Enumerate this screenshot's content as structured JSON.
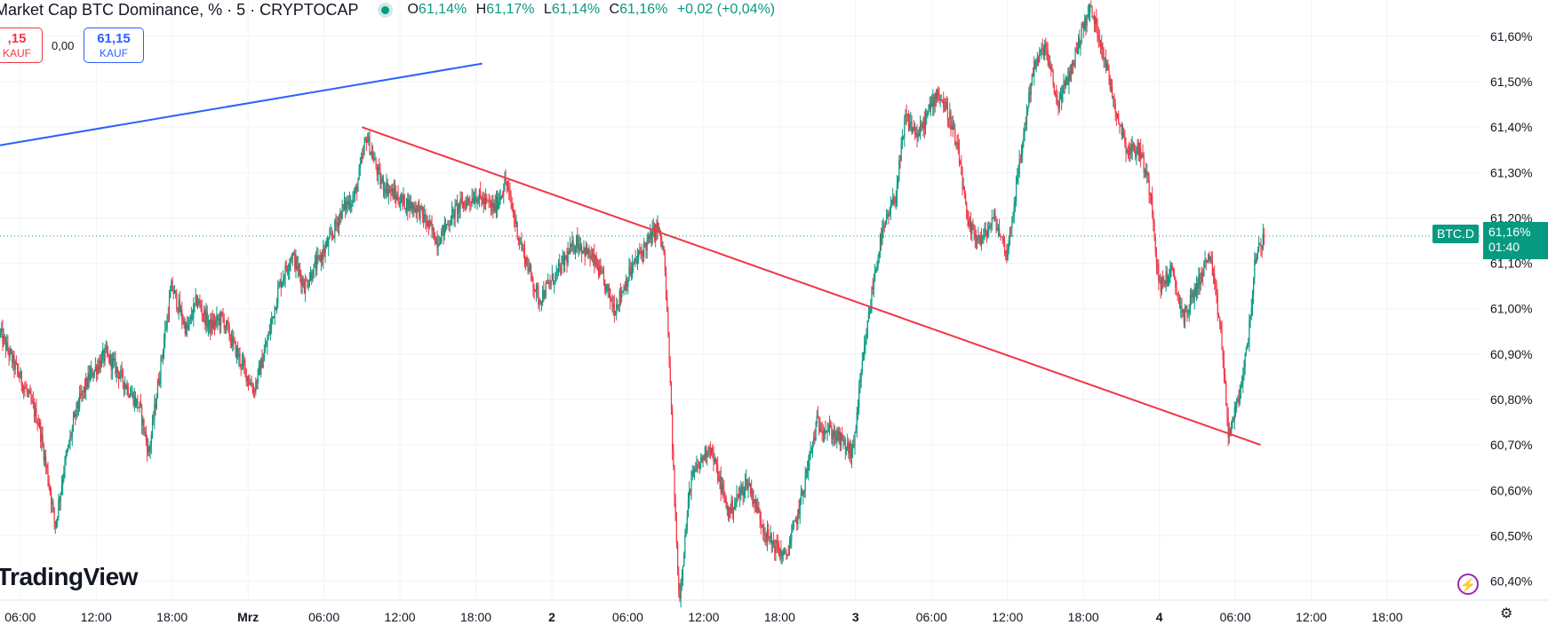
{
  "header": {
    "title": "Market Cap BTC Dominance, % · 5 · CRYPTOCAP",
    "open_key": "O",
    "open": "61,14%",
    "high_key": "H",
    "high": "61,17%",
    "low_key": "L",
    "low": "61,14%",
    "close_key": "C",
    "close": "61,16%",
    "change": "+0,02 (+0,04%)"
  },
  "trade": {
    "sell_price": ",15",
    "sell_label": "KAUF",
    "spread": "0,00",
    "buy_price": "61,15",
    "buy_label": "KAUF"
  },
  "branding": {
    "logo": "TradingView"
  },
  "price_tag": {
    "symbol": "BTC.D",
    "value": "61,16%",
    "countdown": "01:40"
  },
  "colors": {
    "up": "#089981",
    "down": "#f23645",
    "trendline_red": "#f23645",
    "trendline_blue": "#2962ff"
  },
  "icons": [
    "lightning-icon",
    "settings-icon"
  ],
  "chart_data": {
    "type": "candlestick",
    "symbol": "BTC.D",
    "interval": "5",
    "ylim": [
      60.36,
      61.68
    ],
    "y_ticks": [
      60.4,
      60.5,
      60.6,
      60.7,
      60.8,
      60.9,
      61.0,
      61.1,
      61.2,
      61.3,
      61.4,
      61.5,
      61.6
    ],
    "y_tick_labels": [
      "60,40%",
      "60,50%",
      "60,60%",
      "60,70%",
      "60,80%",
      "60,90%",
      "61,00%",
      "61,10%",
      "61,20%",
      "61,30%",
      "61,40%",
      "61,50%",
      "61,60%"
    ],
    "x_ticks": [
      {
        "t": 6,
        "label": "06:00"
      },
      {
        "t": 12,
        "label": "12:00"
      },
      {
        "t": 18,
        "label": "18:00"
      },
      {
        "t": 24,
        "label": "Mrz"
      },
      {
        "t": 30,
        "label": "06:00"
      },
      {
        "t": 36,
        "label": "12:00"
      },
      {
        "t": 42,
        "label": "18:00"
      },
      {
        "t": 48,
        "label": "2"
      },
      {
        "t": 54,
        "label": "06:00"
      },
      {
        "t": 60,
        "label": "12:00"
      },
      {
        "t": 66,
        "label": "18:00"
      },
      {
        "t": 72,
        "label": "3"
      },
      {
        "t": 78,
        "label": "06:00"
      },
      {
        "t": 84,
        "label": "12:00"
      },
      {
        "t": 90,
        "label": "18:00"
      },
      {
        "t": 96,
        "label": "4"
      },
      {
        "t": 102,
        "label": "06:00"
      },
      {
        "t": 108,
        "label": "12:00"
      },
      {
        "t": 114,
        "label": "18:00"
      }
    ],
    "xlim": [
      4.4,
      121.3
    ],
    "grid": true,
    "last_price": 61.16,
    "price_path": [
      [
        4.4,
        60.95
      ],
      [
        5.5,
        60.88
      ],
      [
        6.5,
        60.82
      ],
      [
        7.5,
        60.75
      ],
      [
        8.4,
        60.6
      ],
      [
        8.8,
        60.52
      ],
      [
        9.5,
        60.65
      ],
      [
        10.5,
        60.78
      ],
      [
        11.5,
        60.85
      ],
      [
        12.8,
        60.9
      ],
      [
        13.8,
        60.86
      ],
      [
        15.5,
        60.78
      ],
      [
        16.2,
        60.68
      ],
      [
        17.0,
        60.85
      ],
      [
        18.0,
        61.05
      ],
      [
        19.2,
        60.95
      ],
      [
        20.0,
        61.02
      ],
      [
        21.0,
        60.96
      ],
      [
        22.0,
        60.98
      ],
      [
        23.2,
        60.9
      ],
      [
        24.5,
        60.82
      ],
      [
        25.5,
        60.92
      ],
      [
        26.5,
        61.05
      ],
      [
        27.5,
        61.12
      ],
      [
        28.5,
        61.05
      ],
      [
        29.5,
        61.1
      ],
      [
        30.5,
        61.15
      ],
      [
        31.5,
        61.22
      ],
      [
        32.5,
        61.25
      ],
      [
        33.4,
        61.38
      ],
      [
        34.5,
        61.28
      ],
      [
        36.0,
        61.24
      ],
      [
        37.5,
        61.22
      ],
      [
        39.0,
        61.15
      ],
      [
        40.5,
        61.22
      ],
      [
        42.0,
        61.25
      ],
      [
        43.5,
        61.22
      ],
      [
        44.4,
        61.28
      ],
      [
        45.5,
        61.15
      ],
      [
        47.0,
        61.02
      ],
      [
        48.5,
        61.08
      ],
      [
        50.0,
        61.15
      ],
      [
        51.5,
        61.1
      ],
      [
        53.0,
        61.0
      ],
      [
        54.2,
        61.08
      ],
      [
        55.0,
        61.12
      ],
      [
        56.4,
        61.18
      ],
      [
        56.9,
        61.12
      ],
      [
        57.3,
        60.9
      ],
      [
        57.7,
        60.6
      ],
      [
        58.1,
        60.36
      ],
      [
        59.0,
        60.62
      ],
      [
        60.5,
        60.7
      ],
      [
        62.0,
        60.55
      ],
      [
        63.5,
        60.62
      ],
      [
        65.0,
        60.5
      ],
      [
        66.5,
        60.45
      ],
      [
        67.5,
        60.55
      ],
      [
        69.0,
        60.75
      ],
      [
        70.5,
        60.72
      ],
      [
        71.8,
        60.68
      ],
      [
        72.6,
        60.88
      ],
      [
        73.4,
        61.05
      ],
      [
        74.0,
        61.15
      ],
      [
        75.2,
        61.25
      ],
      [
        76.0,
        61.42
      ],
      [
        77.0,
        61.38
      ],
      [
        78.5,
        61.48
      ],
      [
        79.5,
        61.42
      ],
      [
        80.3,
        61.32
      ],
      [
        80.9,
        61.18
      ],
      [
        82.0,
        61.15
      ],
      [
        83.0,
        61.2
      ],
      [
        84.0,
        61.12
      ],
      [
        85.0,
        61.32
      ],
      [
        86.0,
        61.52
      ],
      [
        87.0,
        61.58
      ],
      [
        88.0,
        61.45
      ],
      [
        89.0,
        61.52
      ],
      [
        90.0,
        61.62
      ],
      [
        90.6,
        61.66
      ],
      [
        91.5,
        61.58
      ],
      [
        92.5,
        61.45
      ],
      [
        93.5,
        61.35
      ],
      [
        94.5,
        61.35
      ],
      [
        95.4,
        61.25
      ],
      [
        96.0,
        61.05
      ],
      [
        97.0,
        61.08
      ],
      [
        98.0,
        60.98
      ],
      [
        99.0,
        61.05
      ],
      [
        100.0,
        61.12
      ],
      [
        100.9,
        60.95
      ],
      [
        101.5,
        60.72
      ],
      [
        102.3,
        60.8
      ],
      [
        103.0,
        60.92
      ],
      [
        103.6,
        61.1
      ],
      [
        104.3,
        61.16
      ]
    ],
    "trendlines": [
      {
        "color": "red",
        "from": [
          33.0,
          61.4
        ],
        "to": [
          104.0,
          60.7
        ]
      },
      {
        "color": "blue",
        "from": [
          4.4,
          61.36
        ],
        "to": [
          42.5,
          61.54
        ]
      }
    ]
  }
}
